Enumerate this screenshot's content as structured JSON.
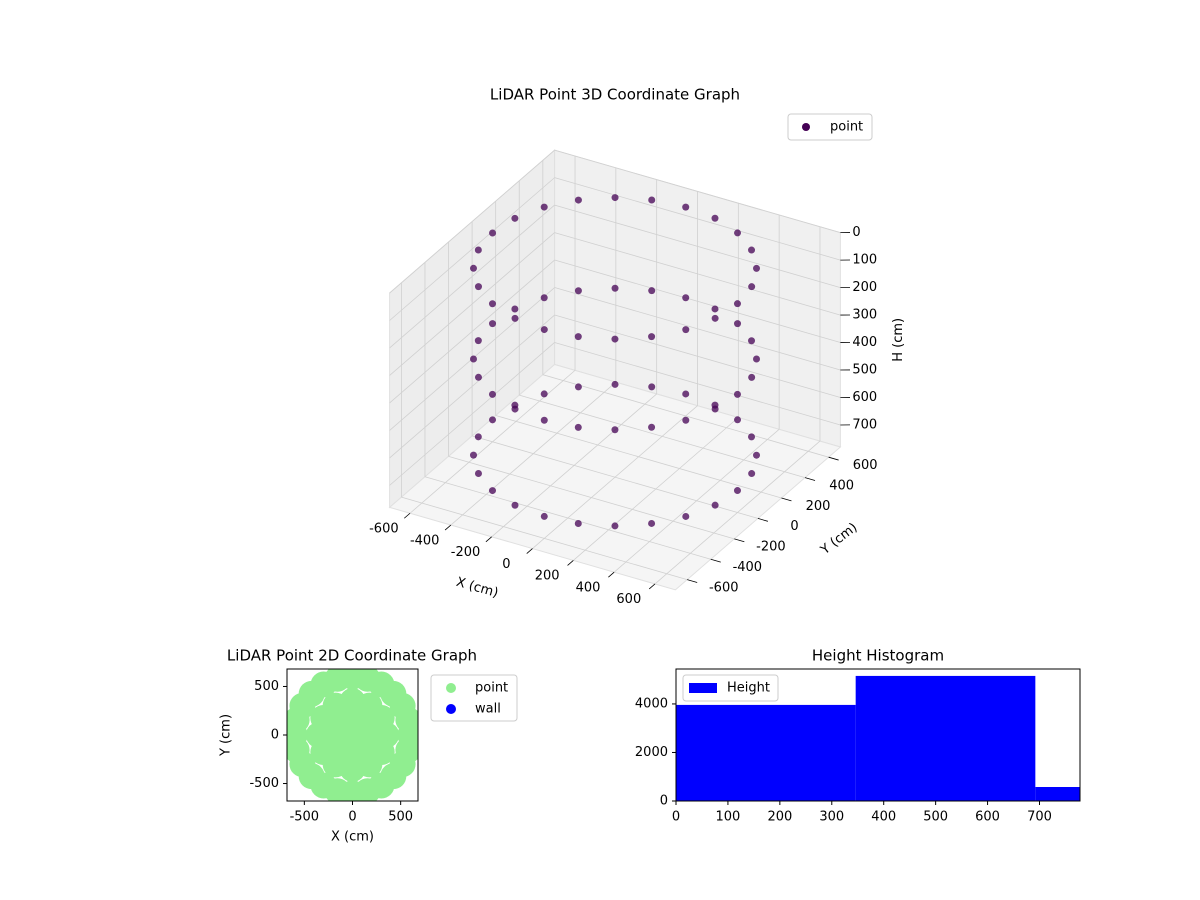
{
  "chart_data": [
    {
      "type": "scatter3d",
      "title": "LiDAR Point 3D Coordinate Graph",
      "xlabel": "X (cm)",
      "ylabel": "Y (cm)",
      "zlabel": "H (cm)",
      "xlim": [
        -700,
        700
      ],
      "ylim": [
        -700,
        700
      ],
      "zlim": [
        0,
        780
      ],
      "z_inverted": true,
      "xticks": [
        -600,
        -400,
        -200,
        0,
        200,
        400,
        600
      ],
      "yticks": [
        -600,
        -400,
        -200,
        0,
        200,
        400,
        600
      ],
      "zticks": [
        0,
        100,
        200,
        300,
        400,
        500,
        600,
        700
      ],
      "grid": true,
      "legend": "upper right",
      "series": [
        {
          "name": "point",
          "color": "#440154",
          "x": [
            600,
            580,
            520,
            424,
            300,
            155,
            0,
            -155,
            -300,
            -424,
            -520,
            -580,
            -600,
            -580,
            -520,
            -424,
            -300,
            -155,
            0,
            155,
            300,
            424,
            520,
            580,
            600,
            580,
            520,
            424,
            300,
            155,
            0,
            -155,
            -300,
            -424,
            -520,
            -580,
            -600,
            -580,
            -520,
            -424,
            -300,
            -155,
            0,
            155,
            300,
            424,
            520,
            580,
            600,
            580,
            520,
            424,
            300,
            155,
            0,
            -155,
            -300,
            -424,
            -520,
            -580,
            -600,
            -580,
            -520,
            -424,
            -300,
            -155,
            0,
            155,
            300,
            424,
            520,
            580
          ],
          "y": [
            0,
            155,
            300,
            424,
            520,
            580,
            600,
            580,
            520,
            424,
            300,
            155,
            0,
            -155,
            -300,
            -424,
            -520,
            -580,
            -600,
            -580,
            -520,
            -424,
            -300,
            -155,
            0,
            155,
            300,
            424,
            520,
            580,
            600,
            580,
            520,
            424,
            300,
            155,
            0,
            -155,
            -300,
            -424,
            -520,
            -580,
            -600,
            -580,
            -520,
            -424,
            -300,
            -155,
            0,
            155,
            300,
            424,
            520,
            580,
            600,
            580,
            520,
            424,
            300,
            155,
            0,
            -155,
            -300,
            -424,
            -520,
            -580,
            -600,
            -580,
            -520,
            -424,
            -300,
            -155
          ],
          "z": [
            20,
            20,
            20,
            20,
            20,
            20,
            20,
            20,
            20,
            20,
            20,
            20,
            20,
            20,
            20,
            20,
            20,
            20,
            20,
            20,
            20,
            20,
            20,
            20,
            350,
            350,
            350,
            350,
            350,
            350,
            350,
            350,
            350,
            350,
            350,
            350,
            350,
            350,
            350,
            350,
            350,
            350,
            350,
            350,
            350,
            350,
            350,
            350,
            700,
            700,
            700,
            700,
            700,
            700,
            700,
            700,
            700,
            700,
            700,
            700,
            700,
            700,
            700,
            700,
            700,
            700,
            700,
            700,
            700,
            700,
            700,
            700
          ]
        }
      ]
    },
    {
      "type": "scatter",
      "title": "LiDAR Point 2D Coordinate Graph",
      "xlabel": "X (cm)",
      "ylabel": "Y (cm)",
      "xlim": [
        -680,
        680
      ],
      "ylim": [
        -680,
        680
      ],
      "xticks": [
        -500,
        0,
        500
      ],
      "yticks": [
        -500,
        0,
        500
      ],
      "legend": "outside right",
      "series": [
        {
          "name": "point",
          "color": "#90ee90",
          "x": [
            600,
            580,
            520,
            424,
            300,
            155,
            0,
            -155,
            -300,
            -424,
            -520,
            -580,
            -600,
            -580,
            -520,
            -424,
            -300,
            -155,
            0,
            155,
            300,
            424,
            520,
            580,
            350,
            303,
            175,
            0,
            -175,
            -303,
            -350,
            -303,
            -175,
            0,
            175,
            303,
            175,
            88,
            -88,
            -175,
            -88,
            88,
            0
          ],
          "y": [
            0,
            155,
            300,
            424,
            520,
            580,
            600,
            580,
            520,
            424,
            300,
            155,
            0,
            -155,
            -300,
            -424,
            -520,
            -580,
            -600,
            -580,
            -520,
            -424,
            -300,
            -155,
            0,
            175,
            303,
            350,
            303,
            175,
            0,
            -175,
            -303,
            -350,
            -303,
            -175,
            0,
            152,
            152,
            0,
            -152,
            -152,
            0
          ]
        },
        {
          "name": "wall",
          "color": "#0000ff",
          "x": [],
          "y": []
        }
      ]
    },
    {
      "type": "histogram",
      "title": "Height Histogram",
      "bins": [
        0,
        346,
        692,
        778
      ],
      "values": [
        3960,
        5155,
        577
      ],
      "xlim": [
        0,
        778
      ],
      "ylim": [
        0,
        5440
      ],
      "xticks": [
        0,
        100,
        200,
        300,
        400,
        500,
        600,
        700
      ],
      "yticks": [
        0,
        2000,
        4000
      ],
      "legend": "upper left",
      "series_name": "Height",
      "color": "#0000ff"
    }
  ]
}
